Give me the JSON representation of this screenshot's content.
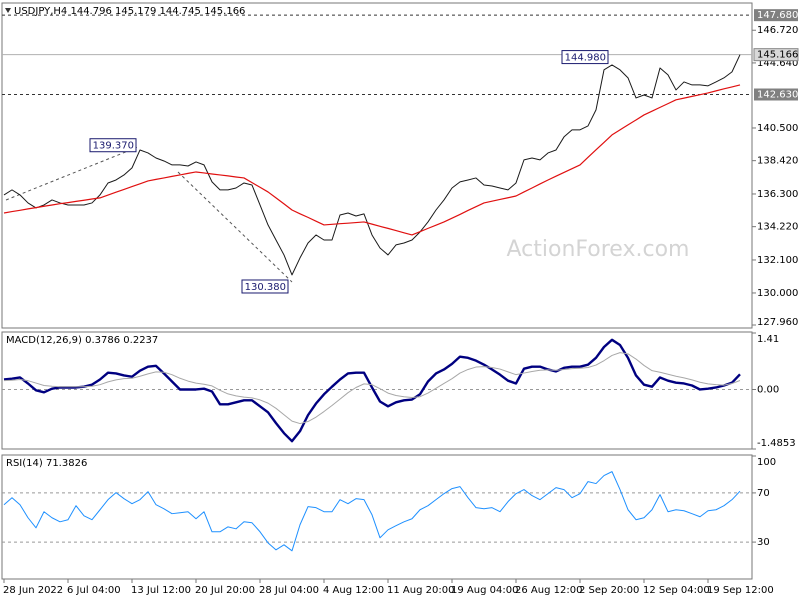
{
  "chart_data": [
    {
      "type": "line",
      "title": "USDJPY,H4  144.796 145.179 144.745 145.166",
      "ylim": [
        127.77,
        148.39
      ],
      "yticks": [
        {
          "value": 146.72,
          "label": "146.720"
        },
        {
          "value": 144.64,
          "label": "144.640"
        },
        {
          "value": 140.5,
          "label": "140.500"
        },
        {
          "value": 138.42,
          "label": "138.420"
        },
        {
          "value": 136.3,
          "label": "136.300"
        },
        {
          "value": 134.22,
          "label": "134.220"
        },
        {
          "value": 132.1,
          "label": "132.100"
        },
        {
          "value": 130,
          "label": "130.000"
        },
        {
          "value": 127.96,
          "label": "127.960"
        }
      ],
      "series": [
        {
          "color": "#1a1a1a",
          "values": [
            136.24,
            136.56,
            136.24,
            135.73,
            135.41,
            135.6,
            135.92,
            135.73,
            135.6,
            135.6,
            135.6,
            135.73,
            136.24,
            137.0,
            137.19,
            137.51,
            137.96,
            139.1,
            138.91,
            138.59,
            138.4,
            138.15,
            138.15,
            138.08,
            138.34,
            138.15,
            137.07,
            136.56,
            136.56,
            136.68,
            137.0,
            136.87,
            135.6,
            134.33,
            133.37,
            132.42,
            131.15,
            132.23,
            133.18,
            133.69,
            133.37,
            133.37,
            134.96,
            135.09,
            134.9,
            135.03,
            133.69,
            132.86,
            132.42,
            133.06,
            133.18,
            133.37,
            133.88,
            134.52,
            135.28,
            135.92,
            136.68,
            137.07,
            137.19,
            137.32,
            136.87,
            136.81,
            136.68,
            136.56,
            137.0,
            138.47,
            138.59,
            138.47,
            138.91,
            139.1,
            139.93,
            140.38,
            140.38,
            140.63,
            141.65,
            144.2,
            144.51,
            144.2,
            143.69,
            142.41,
            142.6,
            142.41,
            144.32,
            143.88,
            142.92,
            143.43,
            143.24,
            143.24,
            143.18,
            143.43,
            143.69,
            144.07,
            145.166
          ]
        },
        {
          "color": "#e01010",
          "values": [
            135.09,
            135.18,
            135.26,
            135.35,
            135.43,
            135.52,
            135.6,
            135.68,
            135.75,
            135.83,
            135.9,
            135.98,
            136.05,
            136.23,
            136.41,
            136.59,
            136.77,
            136.95,
            137.13,
            137.23,
            137.32,
            137.42,
            137.51,
            137.61,
            137.7,
            137.64,
            137.57,
            137.51,
            137.45,
            137.38,
            137.32,
            137.02,
            136.73,
            136.43,
            136.05,
            135.67,
            135.28,
            135.04,
            134.81,
            134.57,
            134.33,
            134.37,
            134.41,
            134.44,
            134.48,
            134.52,
            134.38,
            134.24,
            134.11,
            133.97,
            133.83,
            133.69,
            133.9,
            134.11,
            134.31,
            134.52,
            134.76,
            135.0,
            135.25,
            135.49,
            135.73,
            135.84,
            135.95,
            136.06,
            136.17,
            136.43,
            136.68,
            136.94,
            137.19,
            137.43,
            137.67,
            137.91,
            138.15,
            138.63,
            139.11,
            139.58,
            140.06,
            140.38,
            140.7,
            141.01,
            141.33,
            141.57,
            141.81,
            142.05,
            142.29,
            142.4,
            142.51,
            142.62,
            142.73,
            142.86,
            142.99,
            143.11,
            143.24
          ]
        }
      ],
      "hlines": [
        {
          "value": 147.68,
          "label": "147.680"
        },
        {
          "value": 142.63,
          "label": "142.630"
        }
      ],
      "last_price": {
        "value": 145.166,
        "label": "145.166"
      },
      "annotations": [
        {
          "index": 17,
          "value": 139.37,
          "label": "139.370"
        },
        {
          "index": 36,
          "value": 130.38,
          "label": "130.380"
        },
        {
          "index": 76,
          "value": 144.98,
          "label": "144.980"
        }
      ],
      "watermark": "ActionForex.com"
    },
    {
      "type": "line",
      "title": "MACD(12,26,9) 0.3786 0.2237",
      "ylim": [
        -1.4853,
        1.41
      ],
      "yticks": [
        1.41,
        {
          "value": 0,
          "label": "0.00"
        },
        -1.4853
      ],
      "grid": true,
      "series": [
        {
          "color": "#000080",
          "values": [
            0.25,
            0.27,
            0.3,
            0.15,
            -0.02,
            -0.07,
            0.02,
            0.05,
            0.05,
            0.05,
            0.07,
            0.12,
            0.25,
            0.42,
            0.4,
            0.35,
            0.32,
            0.47,
            0.57,
            0.59,
            0.4,
            0.2,
            0,
            0,
            0,
            0.02,
            -0.05,
            -0.37,
            -0.37,
            -0.32,
            -0.27,
            -0.27,
            -0.42,
            -0.57,
            -0.84,
            -1.09,
            -1.29,
            -1.04,
            -0.64,
            -0.35,
            -0.12,
            0.07,
            0.25,
            0.4,
            0.42,
            0.42,
            0.05,
            -0.3,
            -0.42,
            -0.32,
            -0.27,
            -0.25,
            -0.12,
            0.2,
            0.4,
            0.5,
            0.64,
            0.82,
            0.79,
            0.72,
            0.62,
            0.5,
            0.37,
            0.22,
            0.15,
            0.52,
            0.57,
            0.57,
            0.5,
            0.45,
            0.54,
            0.57,
            0.57,
            0.62,
            0.79,
            1.06,
            1.24,
            1.11,
            0.79,
            0.35,
            0.12,
            0.07,
            0.3,
            0.22,
            0.17,
            0.15,
            0.1,
            0,
            0.02,
            0.05,
            0.1,
            0.17,
            0.3786
          ]
        },
        {
          "color": "#a8a8a8",
          "values": [
            0.22,
            0.23,
            0.25,
            0.22,
            0.16,
            0.1,
            0.08,
            0.07,
            0.07,
            0.07,
            0.07,
            0.08,
            0.12,
            0.19,
            0.24,
            0.27,
            0.28,
            0.33,
            0.39,
            0.44,
            0.43,
            0.37,
            0.28,
            0.21,
            0.16,
            0.13,
            0.09,
            -0.02,
            -0.11,
            -0.16,
            -0.19,
            -0.21,
            -0.26,
            -0.34,
            -0.47,
            -0.63,
            -0.79,
            -0.85,
            -0.8,
            -0.69,
            -0.55,
            -0.4,
            -0.24,
            -0.08,
            0.05,
            0.14,
            0.12,
            0.02,
            -0.09,
            -0.15,
            -0.18,
            -0.2,
            -0.18,
            -0.09,
            0.03,
            0.15,
            0.27,
            0.41,
            0.5,
            0.56,
            0.57,
            0.55,
            0.51,
            0.44,
            0.37,
            0.41,
            0.45,
            0.48,
            0.49,
            0.48,
            0.5,
            0.52,
            0.53,
            0.55,
            0.61,
            0.72,
            0.85,
            0.92,
            0.89,
            0.76,
            0.6,
            0.47,
            0.43,
            0.38,
            0.33,
            0.29,
            0.24,
            0.18,
            0.14,
            0.12,
            0.11,
            0.15,
            0.2237
          ]
        }
      ]
    },
    {
      "type": "line",
      "title": "RSI(14) 71.3826",
      "ylim": [
        0,
        100
      ],
      "yticks": [
        100,
        70,
        30
      ],
      "grid": true,
      "categories": [
        "28 Jun 2022",
        null,
        null,
        null,
        null,
        null,
        null,
        null,
        "6 Jul 04:00",
        null,
        null,
        null,
        null,
        null,
        null,
        null,
        "13 Jul 12:00",
        null,
        null,
        null,
        null,
        null,
        null,
        null,
        "20 Jul 20:00",
        null,
        null,
        null,
        null,
        null,
        null,
        null,
        "28 Jul 04:00",
        null,
        null,
        null,
        null,
        null,
        null,
        null,
        "4 Aug 12:00",
        null,
        null,
        null,
        null,
        null,
        null,
        null,
        "11 Aug 20:00",
        null,
        null,
        null,
        null,
        null,
        null,
        null,
        "19 Aug 04:00",
        null,
        null,
        null,
        null,
        null,
        null,
        null,
        "26 Aug 12:00",
        null,
        null,
        null,
        null,
        null,
        null,
        null,
        "2 Sep 20:00",
        null,
        null,
        null,
        null,
        null,
        null,
        null,
        "12 Sep 04:00",
        null,
        null,
        null,
        null,
        null,
        null,
        null,
        "19 Sep 12:00",
        null,
        null,
        null,
        null
      ],
      "series": [
        {
          "color": "#1e90ff",
          "values": [
            60.4,
            66.1,
            60.4,
            49.8,
            41.6,
            54.7,
            49.8,
            46.5,
            48.2,
            59.6,
            51.4,
            48.2,
            56.3,
            64.5,
            70.2,
            65.3,
            61.2,
            64.5,
            71.0,
            60.4,
            57.1,
            53.1,
            53.9,
            54.7,
            49.0,
            54.7,
            38.4,
            38.4,
            42.4,
            40.8,
            46.5,
            45.7,
            38.4,
            29.4,
            23.7,
            27.8,
            22.9,
            44.1,
            58.8,
            58.0,
            54.7,
            54.7,
            64.5,
            61.2,
            65.3,
            64.5,
            52.2,
            33.5,
            40.0,
            43.3,
            46.5,
            49.0,
            56.3,
            59.6,
            64.5,
            69.4,
            73.5,
            75.1,
            66.1,
            58.0,
            57.1,
            58.0,
            54.7,
            62.9,
            69.4,
            72.7,
            67.8,
            64.5,
            69.4,
            74.3,
            72.7,
            66.1,
            69.4,
            79.2,
            77.6,
            84.1,
            87.3,
            72.7,
            56.3,
            48.2,
            49.8,
            56.3,
            68.6,
            54.7,
            56.3,
            55.5,
            53.1,
            50.6,
            55.5,
            56.3,
            59.6,
            64.5,
            71.3826
          ]
        }
      ]
    }
  ]
}
